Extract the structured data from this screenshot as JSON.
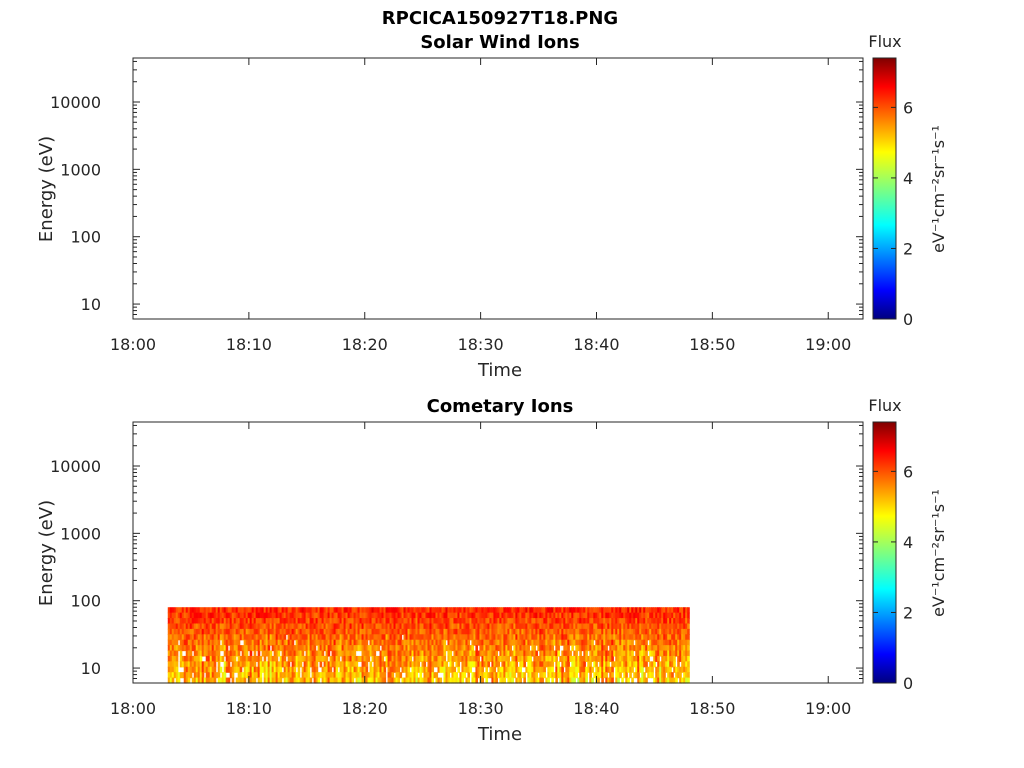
{
  "figure_title": "RPCICA150927T18.PNG",
  "chart_data": [
    {
      "type": "heatmap",
      "title": "Solar Wind Ions",
      "xlabel": "Time",
      "ylabel": "Energy (eV)",
      "x_range": [
        "18:00",
        "19:03"
      ],
      "y_range": [
        6,
        45000
      ],
      "y_scale": "log",
      "x_ticks": [
        "18:00",
        "18:10",
        "18:20",
        "18:30",
        "18:40",
        "18:50",
        "19:00"
      ],
      "y_ticks": [
        {
          "value": 10,
          "label": "10"
        },
        {
          "value": 100,
          "label": "100"
        },
        {
          "value": 1000,
          "label": "1000"
        },
        {
          "value": 10000,
          "label": "10000"
        }
      ],
      "colorbar": {
        "title": "Flux",
        "label": "eV⁻¹cm⁻²sr⁻¹s⁻¹",
        "range": [
          0,
          7.4
        ],
        "ticks": [
          {
            "value": 0,
            "label": "0"
          },
          {
            "value": 2,
            "label": "2"
          },
          {
            "value": 4,
            "label": "4"
          },
          {
            "value": 6,
            "label": "6"
          }
        ],
        "colormap": "jet"
      },
      "data_time_range": null,
      "data_energy_range": null
    },
    {
      "type": "heatmap",
      "title": "Cometary Ions",
      "xlabel": "Time",
      "ylabel": "Energy (eV)",
      "x_range": [
        "18:00",
        "19:03"
      ],
      "y_range": [
        6,
        45000
      ],
      "y_scale": "log",
      "x_ticks": [
        "18:00",
        "18:10",
        "18:20",
        "18:30",
        "18:40",
        "18:50",
        "19:00"
      ],
      "y_ticks": [
        {
          "value": 10,
          "label": "10"
        },
        {
          "value": 100,
          "label": "100"
        },
        {
          "value": 1000,
          "label": "1000"
        },
        {
          "value": 10000,
          "label": "10000"
        }
      ],
      "colorbar": {
        "title": "Flux",
        "label": "eV⁻¹cm⁻²sr⁻¹s⁻¹",
        "range": [
          0,
          7.4
        ],
        "ticks": [
          {
            "value": 0,
            "label": "0"
          },
          {
            "value": 2,
            "label": "2"
          },
          {
            "value": 4,
            "label": "4"
          },
          {
            "value": 6,
            "label": "6"
          }
        ],
        "colormap": "jet"
      },
      "data_time_range": [
        "18:03",
        "18:48"
      ],
      "data_energy_range": [
        6,
        80
      ],
      "flux_range": [
        3.5,
        7.2
      ]
    }
  ]
}
